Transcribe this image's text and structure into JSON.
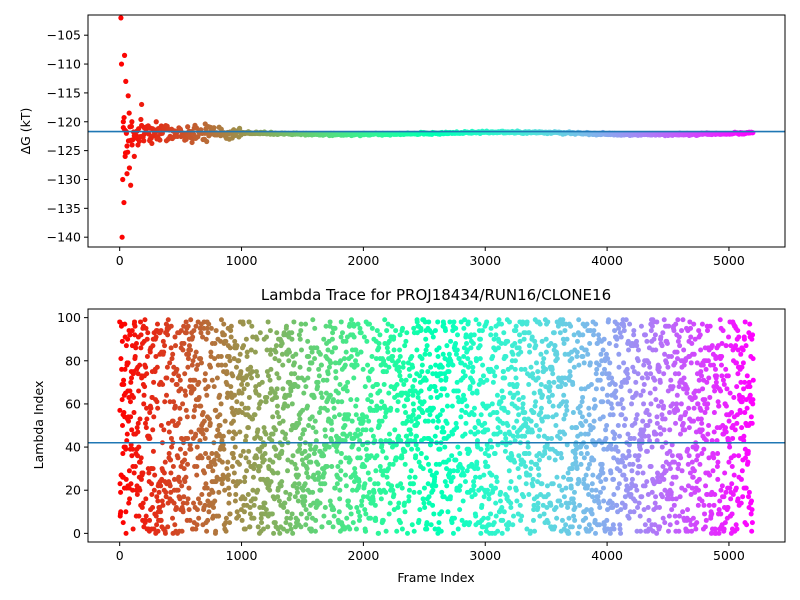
{
  "chart_data": [
    {
      "type": "scatter",
      "title": "",
      "xlabel": "",
      "ylabel": "ΔG (kT)",
      "xlim": [
        -260,
        5460
      ],
      "ylim": [
        -141.7,
        -101.5
      ],
      "xticks": [
        0,
        1000,
        2000,
        3000,
        4000,
        5000
      ],
      "yticks": [
        -140,
        -135,
        -130,
        -125,
        -120,
        -115,
        -110,
        -105
      ],
      "colormap": "rainbow (reversed: red at frame 0, violet at last frame)",
      "n_frames": 5200,
      "hline": -121.7,
      "hline_color": "#1f77b4",
      "series": [
        {
          "description": "running free-energy estimate per frame",
          "early_points": [
            [
              10,
              -102
            ],
            [
              15,
              -110
            ],
            [
              20,
              -140
            ],
            [
              25,
              -130
            ],
            [
              30,
              -120
            ],
            [
              35,
              -134
            ],
            [
              40,
              -108.5
            ],
            [
              45,
              -126
            ],
            [
              50,
              -113
            ],
            [
              55,
              -122
            ],
            [
              60,
              -129
            ],
            [
              70,
              -115.5
            ],
            [
              80,
              -128
            ],
            [
              90,
              -131
            ],
            [
              100,
              -120
            ],
            [
              120,
              -126
            ],
            [
              150,
              -123
            ],
            [
              180,
              -117
            ],
            [
              200,
              -121
            ],
            [
              250,
              -123
            ],
            [
              300,
              -120
            ],
            [
              350,
              -122
            ],
            [
              400,
              -123
            ],
            [
              500,
              -121.5
            ],
            [
              700,
              -122
            ]
          ],
          "late_band": {
            "from_x": 1000,
            "to_x": 5200,
            "center": -122,
            "half_width": 0.3
          }
        }
      ]
    },
    {
      "type": "scatter",
      "title": "Lambda Trace for PROJ18434/RUN16/CLONE16",
      "xlabel": "Frame Index",
      "ylabel": "Lambda Index",
      "xlim": [
        -260,
        5460
      ],
      "ylim": [
        -4,
        104
      ],
      "xticks": [
        0,
        1000,
        2000,
        3000,
        4000,
        5000
      ],
      "yticks": [
        0,
        20,
        40,
        60,
        80,
        100
      ],
      "colormap": "rainbow (reversed: red at frame 0, violet at last frame)",
      "n_frames": 5200,
      "lambda_range": [
        0,
        99
      ],
      "hline": 42,
      "hline_color": "#1f77b4",
      "series": [
        {
          "description": "lambda index visited at each frame (uniformly spread 0–99)"
        }
      ]
    }
  ]
}
